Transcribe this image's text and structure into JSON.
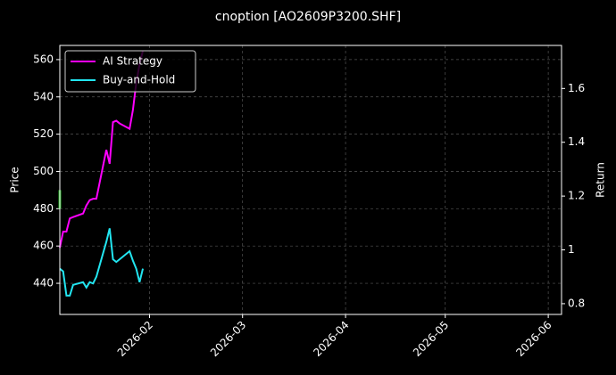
{
  "chart_data": {
    "type": "line",
    "title": "cnoption [AO2609P3200.SHF]",
    "ylabel": "Price",
    "y2label": "Return",
    "xlim": [
      "2026-01-05",
      "2026-06-05"
    ],
    "xticks": [
      {
        "value": "2026-02-01",
        "label": "2026-02"
      },
      {
        "value": "2026-03-01",
        "label": "2026-03"
      },
      {
        "value": "2026-04-01",
        "label": "2026-04"
      },
      {
        "value": "2026-05-01",
        "label": "2026-05"
      },
      {
        "value": "2026-06-01",
        "label": "2026-06"
      }
    ],
    "ylim": [
      423.3,
      567.6
    ],
    "yticks": [
      440,
      460,
      480,
      500,
      520,
      540,
      560
    ],
    "y2lim": [
      0.76,
      1.76
    ],
    "y2ticks": [
      0.8,
      1.0,
      1.2,
      1.4,
      1.6
    ],
    "grid": true,
    "legend": "upper left",
    "x": [
      "2026-01-05",
      "2026-01-06",
      "2026-01-07",
      "2026-01-08",
      "2026-01-09",
      "2026-01-12",
      "2026-01-13",
      "2026-01-14",
      "2026-01-15",
      "2026-01-16",
      "2026-01-19",
      "2026-01-20",
      "2026-01-21",
      "2026-01-22",
      "2026-01-23",
      "2026-01-26",
      "2026-01-27",
      "2026-01-28",
      "2026-01-29",
      "2026-01-30"
    ],
    "series": [
      {
        "name": "AI Strategy",
        "color": "#ff00ff",
        "axis": "y2",
        "values": [
          1.008,
          1.068,
          1.068,
          1.117,
          1.122,
          1.135,
          1.165,
          1.185,
          1.19,
          1.19,
          1.372,
          1.32,
          1.475,
          1.48,
          1.47,
          1.45,
          1.52,
          1.62,
          1.69,
          1.74
        ]
      },
      {
        "name": "Buy-and-Hold",
        "color": "#22e5f0",
        "axis": "y2",
        "values": [
          0.93,
          0.92,
          0.83,
          0.83,
          0.87,
          0.88,
          0.86,
          0.88,
          0.875,
          0.9,
          1.03,
          1.08,
          0.965,
          0.955,
          0.965,
          0.995,
          0.96,
          0.93,
          0.88,
          0.93
        ]
      }
    ],
    "candles": {
      "color": "#22aa22",
      "x": [
        "2026-01-05"
      ],
      "open": [
        480
      ],
      "high": [
        492
      ],
      "low": [
        480
      ],
      "close": [
        490
      ]
    }
  }
}
